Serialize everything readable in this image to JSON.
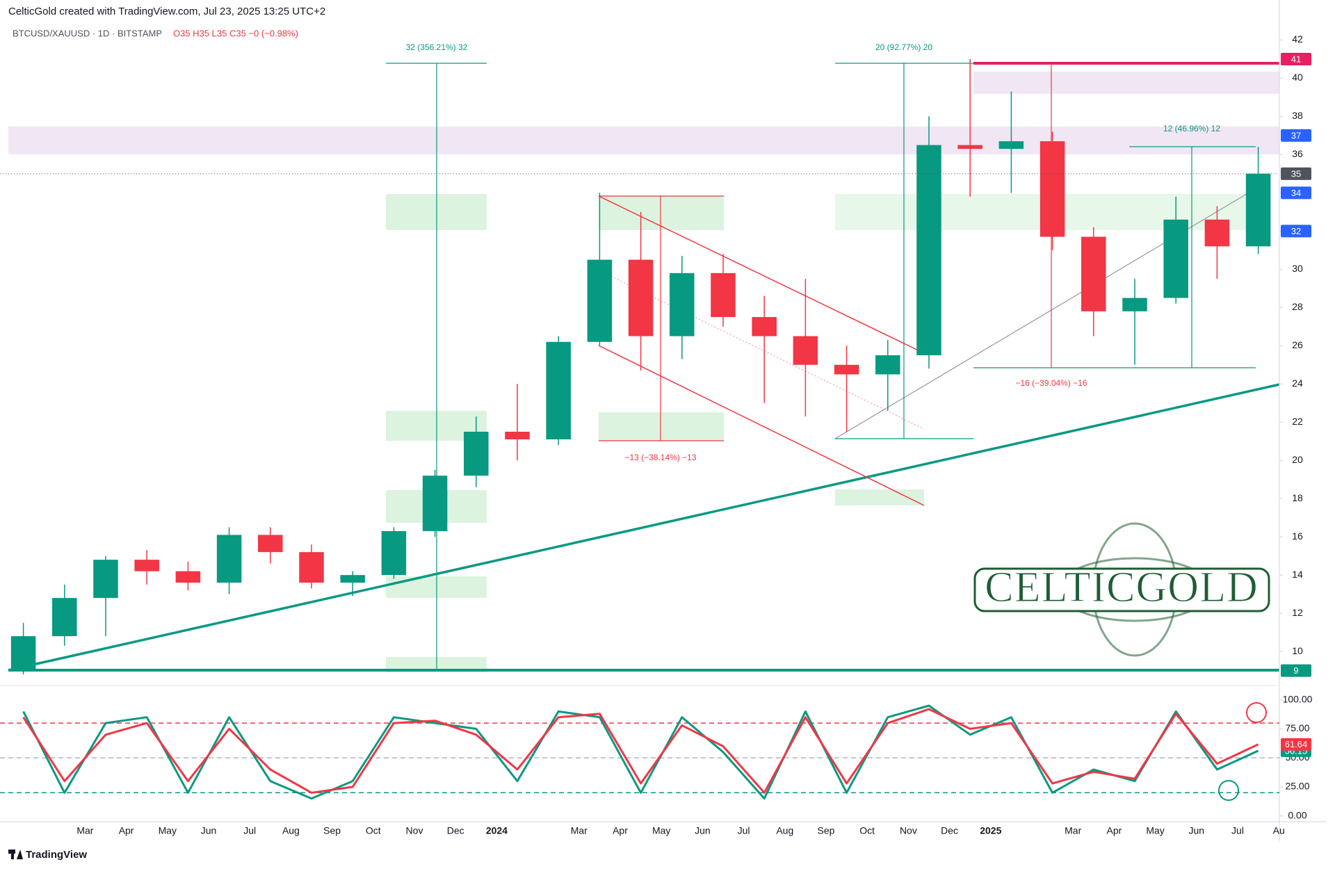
{
  "chart_data": [
    {
      "type": "candlestick",
      "title": "CelticGold created with TradingView.com, Jul 23, 2025 13:25 UTC+2",
      "subtitle": "BTCUSD/XAUUSD · 1D · BITSTAMP",
      "status": "O35 H35 L35 C35 −0 (−0.98%)",
      "categories": [
        null,
        null,
        "Mar",
        "Apr",
        "May",
        "Jun",
        "Jul",
        "Aug",
        "Sep",
        "Oct",
        "Nov",
        "Dec",
        "2024",
        null,
        "Mar",
        "Apr",
        "May",
        "Jun",
        "Jul",
        "Aug",
        "Sep",
        "Oct",
        "Nov",
        "Dec",
        "2025",
        null,
        "Mar",
        "Apr",
        "May",
        "Jun",
        "Jul",
        "Au"
      ],
      "open": [
        9,
        10.8,
        12.8,
        14.8,
        14.2,
        13.6,
        16.1,
        15.2,
        13.6,
        14.0,
        16.3,
        19.2,
        21.5,
        21.1,
        26.2,
        30.5,
        26.5,
        29.8,
        27.5,
        26.5,
        25,
        24.5,
        25.5,
        36.5,
        36.3,
        36.7,
        31.7,
        27.8,
        28.5,
        32.6,
        31.2,
        null
      ],
      "high": [
        11.5,
        13.5,
        15,
        15.3,
        14.7,
        16.5,
        16.5,
        15.6,
        14.2,
        16.5,
        19.5,
        22.3,
        24,
        26.5,
        34,
        33,
        30.7,
        30.8,
        28.6,
        29.5,
        26,
        26.3,
        38,
        41,
        39.3,
        37.2,
        32.2,
        29.5,
        33.8,
        33.3,
        36.4,
        null
      ],
      "low": [
        8.8,
        10.3,
        10.8,
        13.5,
        13.2,
        13,
        14.6,
        13.3,
        12.9,
        13.8,
        16,
        18.6,
        20,
        20.8,
        26,
        24.7,
        25.3,
        27,
        23,
        22.3,
        21.5,
        22.6,
        24.8,
        33.8,
        34,
        31,
        26.5,
        25,
        28.2,
        29.5,
        30.8,
        null
      ],
      "close": [
        10.8,
        12.8,
        14.8,
        14.2,
        13.6,
        16.1,
        15.2,
        13.6,
        14.0,
        16.3,
        19.2,
        21.5,
        21.1,
        26.2,
        30.5,
        26.5,
        29.8,
        27.5,
        26.5,
        25,
        24.5,
        25.5,
        36.5,
        36.3,
        36.7,
        31.7,
        27.8,
        28.5,
        32.6,
        31.2,
        35,
        null
      ],
      "up_color": "#089981",
      "down_color": "#f23645",
      "ylim": [
        8.44,
        44.09
      ],
      "yticks": [
        10,
        12,
        14,
        16,
        18,
        20,
        22,
        24,
        26,
        28,
        30,
        32,
        34,
        36,
        38,
        40,
        42
      ],
      "price_labels": [
        {
          "value": 41,
          "color": "#e91e63"
        },
        {
          "value": 37,
          "color": "#2962ff"
        },
        {
          "value": 34,
          "color": "#2962ff"
        },
        {
          "value": 32,
          "color": "#2962ff"
        },
        {
          "value": 9,
          "color": "#089981"
        }
      ],
      "annotations": [
        "32 (356.21%) 32",
        "20 (92.77%) 20",
        "12 (46.96%) 12",
        "−13 (−38.14%) −13",
        "−16 (−39.04%) −16"
      ],
      "logo": "CELTICGOLD",
      "source": "TradingView"
    },
    {
      "type": "line",
      "series": [
        {
          "color": "#089981",
          "values": [
            90,
            20,
            80,
            85,
            20,
            85,
            30,
            15,
            30,
            85,
            80,
            75,
            30,
            90,
            85,
            20,
            85,
            55,
            15,
            90,
            20,
            85,
            95,
            70,
            85,
            20,
            40,
            30,
            90,
            40,
            56.15,
            null
          ]
        },
        {
          "color": "#f23645",
          "values": [
            85,
            30,
            70,
            80,
            30,
            75,
            40,
            20,
            25,
            80,
            82,
            70,
            40,
            85,
            88,
            28,
            78,
            60,
            20,
            85,
            28,
            80,
            92,
            75,
            80,
            28,
            38,
            32,
            88,
            45,
            61.64,
            null
          ]
        }
      ],
      "ylim": [
        -5,
        110
      ],
      "yticks": [
        {
          "value": 0,
          "label": "0.00"
        },
        {
          "value": 25,
          "label": "25.00"
        },
        {
          "value": 50,
          "label": "50.00"
        },
        {
          "value": 75,
          "label": "75.00"
        },
        {
          "value": 100,
          "label": "100.00"
        }
      ],
      "levels": [
        80,
        50,
        20
      ],
      "level_colors": [
        "#f23645",
        "#b2b5be",
        "#089981"
      ]
    }
  ]
}
